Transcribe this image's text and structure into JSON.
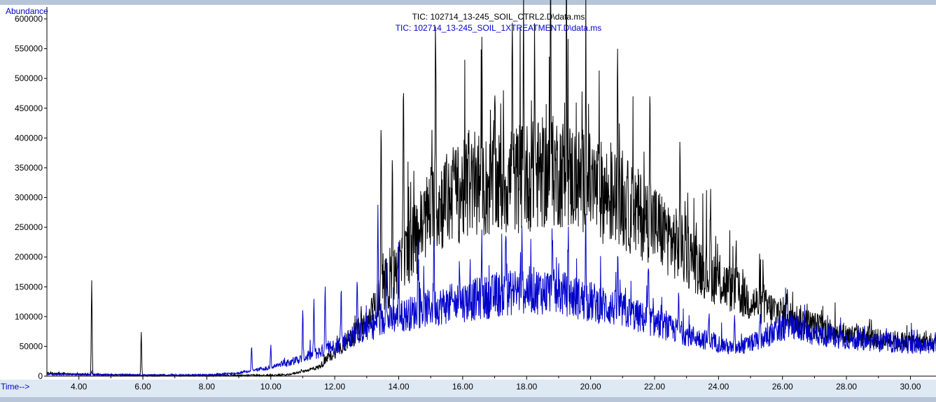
{
  "chart_data": {
    "type": "line",
    "title_lines": [
      "TIC: 102714_13-245_SOIL_CTRL2.D\\data.ms",
      "TIC: 102714_13-245_SOIL_1XTREATMENT.D\\data.ms"
    ],
    "xlabel": "Time-->",
    "ylabel": "Abundance",
    "xlim": [
      3.0,
      30.8
    ],
    "ylim": [
      0,
      620000
    ],
    "x_ticks": [
      "4.00",
      "6.00",
      "8.00",
      "10.00",
      "12.00",
      "14.00",
      "16.00",
      "18.00",
      "20.00",
      "22.00",
      "24.00",
      "26.00",
      "28.00",
      "30.00"
    ],
    "y_ticks": [
      "0",
      "50000",
      "100000",
      "150000",
      "200000",
      "250000",
      "300000",
      "350000",
      "400000",
      "450000",
      "500000",
      "550000",
      "600000"
    ],
    "grid": false,
    "series": [
      {
        "name": "TIC: 102714_13-245_SOIL_CTRL2.D\\data.ms",
        "color": "#000000",
        "baseline": [
          [
            3.0,
            5000
          ],
          [
            4.0,
            3000
          ],
          [
            6.0,
            1500
          ],
          [
            8.0,
            1000
          ],
          [
            10.0,
            1500
          ],
          [
            10.5,
            2000
          ],
          [
            11.0,
            8000
          ],
          [
            11.5,
            15000
          ],
          [
            12.0,
            40000
          ],
          [
            13.0,
            90000
          ],
          [
            13.5,
            140000
          ],
          [
            14.0,
            180000
          ],
          [
            14.5,
            230000
          ],
          [
            15.0,
            280000
          ],
          [
            16.0,
            310000
          ],
          [
            17.0,
            320000
          ],
          [
            18.0,
            335000
          ],
          [
            19.0,
            345000
          ],
          [
            20.0,
            320000
          ],
          [
            21.0,
            290000
          ],
          [
            22.0,
            255000
          ],
          [
            23.0,
            205000
          ],
          [
            24.0,
            160000
          ],
          [
            25.0,
            125000
          ],
          [
            26.0,
            105000
          ],
          [
            27.0,
            85000
          ],
          [
            28.0,
            70000
          ],
          [
            29.0,
            62000
          ],
          [
            30.0,
            58000
          ],
          [
            30.8,
            55000
          ]
        ],
        "peaks": [
          [
            4.4,
            160000
          ],
          [
            5.95,
            75000
          ],
          [
            13.45,
            400000
          ],
          [
            13.8,
            380000
          ],
          [
            14.15,
            515000
          ],
          [
            15.15,
            580000
          ],
          [
            15.7,
            440000
          ],
          [
            16.2,
            420000
          ],
          [
            16.6,
            450000
          ],
          [
            17.0,
            470000
          ],
          [
            17.55,
            590000
          ],
          [
            17.9,
            550000
          ],
          [
            18.25,
            560000
          ],
          [
            18.75,
            600000
          ],
          [
            19.25,
            580000
          ],
          [
            19.85,
            590000
          ],
          [
            20.85,
            560000
          ],
          [
            21.85,
            480000
          ],
          [
            22.8,
            375000
          ],
          [
            23.75,
            290000
          ],
          [
            24.55,
            210000
          ],
          [
            25.4,
            185000
          ],
          [
            26.15,
            160000
          ]
        ]
      },
      {
        "name": "TIC: 102714_13-245_SOIL_1XTREATMENT.D\\data.ms",
        "color": "#0000cc",
        "baseline": [
          [
            3.0,
            3000
          ],
          [
            4.0,
            2500
          ],
          [
            6.0,
            1500
          ],
          [
            8.0,
            2000
          ],
          [
            9.0,
            5000
          ],
          [
            10.0,
            15000
          ],
          [
            11.0,
            30000
          ],
          [
            12.0,
            50000
          ],
          [
            13.0,
            80000
          ],
          [
            14.0,
            100000
          ],
          [
            15.0,
            115000
          ],
          [
            16.0,
            125000
          ],
          [
            17.0,
            135000
          ],
          [
            18.0,
            145000
          ],
          [
            19.0,
            140000
          ],
          [
            20.0,
            125000
          ],
          [
            21.0,
            110000
          ],
          [
            22.0,
            90000
          ],
          [
            23.0,
            70000
          ],
          [
            24.0,
            55000
          ],
          [
            24.5,
            45000
          ],
          [
            25.0,
            55000
          ],
          [
            25.5,
            65000
          ],
          [
            26.0,
            80000
          ],
          [
            26.3,
            85000
          ],
          [
            27.0,
            70000
          ],
          [
            28.0,
            62000
          ],
          [
            29.0,
            56000
          ],
          [
            30.0,
            52000
          ],
          [
            30.8,
            50000
          ]
        ],
        "peaks": [
          [
            4.4,
            8000
          ],
          [
            9.4,
            50000
          ],
          [
            10.0,
            50000
          ],
          [
            11.0,
            105000
          ],
          [
            11.35,
            125000
          ],
          [
            11.7,
            155000
          ],
          [
            12.2,
            145000
          ],
          [
            12.7,
            175000
          ],
          [
            13.35,
            285000
          ],
          [
            13.6,
            230000
          ],
          [
            14.0,
            210000
          ],
          [
            14.6,
            215000
          ],
          [
            15.1,
            245000
          ],
          [
            15.9,
            210000
          ],
          [
            16.6,
            215000
          ],
          [
            17.35,
            260000
          ],
          [
            17.85,
            215000
          ],
          [
            18.8,
            260000
          ],
          [
            19.3,
            225000
          ],
          [
            19.85,
            255000
          ],
          [
            20.85,
            185000
          ],
          [
            21.8,
            175000
          ],
          [
            22.75,
            130000
          ],
          [
            23.7,
            105000
          ],
          [
            24.5,
            95000
          ],
          [
            25.3,
            95000
          ],
          [
            25.8,
            100000
          ],
          [
            26.2,
            90000
          ]
        ]
      }
    ]
  }
}
